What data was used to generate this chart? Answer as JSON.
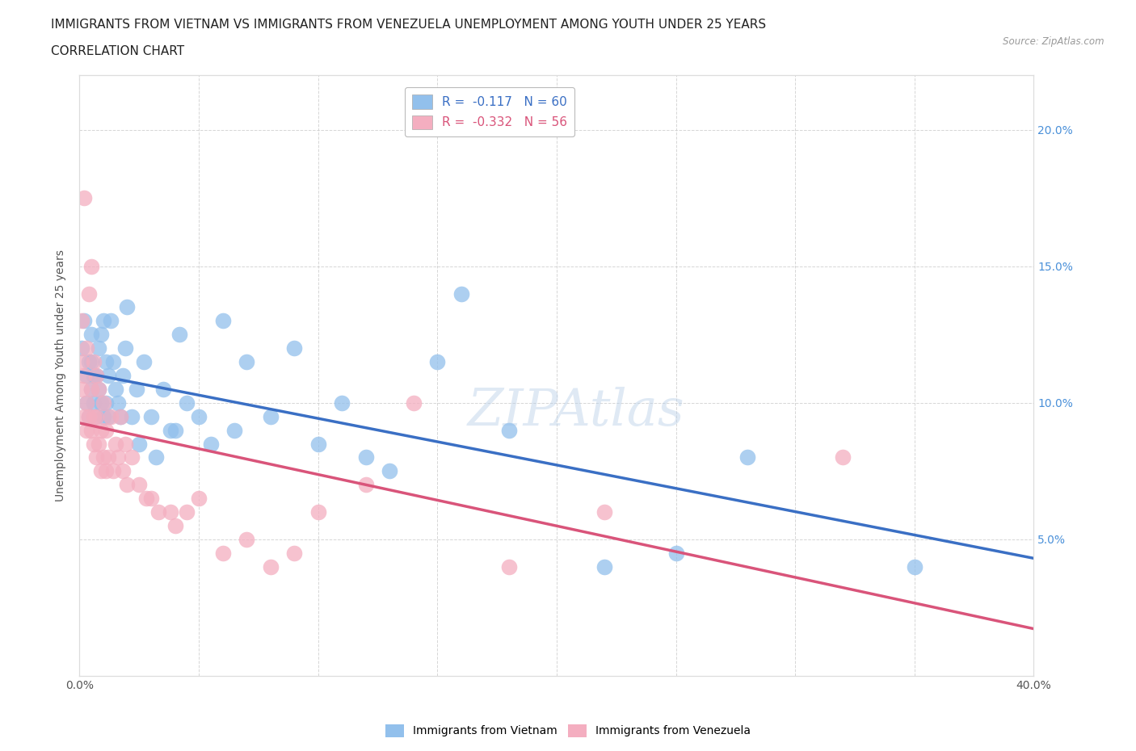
{
  "title_line1": "IMMIGRANTS FROM VIETNAM VS IMMIGRANTS FROM VENEZUELA UNEMPLOYMENT AMONG YOUTH UNDER 25 YEARS",
  "title_line2": "CORRELATION CHART",
  "source_text": "Source: ZipAtlas.com",
  "ylabel": "Unemployment Among Youth under 25 years",
  "xlim": [
    0.0,
    0.4
  ],
  "ylim": [
    0.0,
    0.22
  ],
  "vietnam_color": "#92c0ec",
  "venezuela_color": "#f4aec0",
  "vietnam_line_color": "#3a6fc4",
  "venezuela_line_color": "#d9547a",
  "vietnam_R": -0.117,
  "vietnam_N": 60,
  "venezuela_R": -0.332,
  "venezuela_N": 56,
  "legend_R1": "R =  -0.117   N = 60",
  "legend_R2": "R =  -0.332   N = 56",
  "legend_label1": "Immigrants from Vietnam",
  "legend_label2": "Immigrants from Venezuela",
  "vietnam_scatter_x": [
    0.001,
    0.002,
    0.003,
    0.003,
    0.004,
    0.004,
    0.005,
    0.005,
    0.005,
    0.006,
    0.006,
    0.007,
    0.007,
    0.008,
    0.008,
    0.009,
    0.009,
    0.01,
    0.01,
    0.011,
    0.011,
    0.012,
    0.012,
    0.013,
    0.014,
    0.015,
    0.016,
    0.017,
    0.018,
    0.019,
    0.02,
    0.022,
    0.024,
    0.025,
    0.027,
    0.03,
    0.032,
    0.035,
    0.038,
    0.04,
    0.042,
    0.045,
    0.05,
    0.055,
    0.06,
    0.065,
    0.07,
    0.08,
    0.09,
    0.1,
    0.11,
    0.12,
    0.13,
    0.15,
    0.16,
    0.18,
    0.22,
    0.25,
    0.28,
    0.35
  ],
  "vietnam_scatter_y": [
    0.12,
    0.13,
    0.1,
    0.11,
    0.095,
    0.115,
    0.105,
    0.115,
    0.125,
    0.1,
    0.11,
    0.095,
    0.11,
    0.105,
    0.12,
    0.1,
    0.125,
    0.095,
    0.13,
    0.1,
    0.115,
    0.095,
    0.11,
    0.13,
    0.115,
    0.105,
    0.1,
    0.095,
    0.11,
    0.12,
    0.135,
    0.095,
    0.105,
    0.085,
    0.115,
    0.095,
    0.08,
    0.105,
    0.09,
    0.09,
    0.125,
    0.1,
    0.095,
    0.085,
    0.13,
    0.09,
    0.115,
    0.095,
    0.12,
    0.085,
    0.1,
    0.08,
    0.075,
    0.115,
    0.14,
    0.09,
    0.04,
    0.045,
    0.08,
    0.04
  ],
  "venezuela_scatter_x": [
    0.001,
    0.001,
    0.001,
    0.002,
    0.002,
    0.002,
    0.003,
    0.003,
    0.003,
    0.004,
    0.004,
    0.005,
    0.005,
    0.005,
    0.006,
    0.006,
    0.006,
    0.007,
    0.007,
    0.007,
    0.008,
    0.008,
    0.009,
    0.009,
    0.01,
    0.01,
    0.011,
    0.011,
    0.012,
    0.013,
    0.014,
    0.015,
    0.016,
    0.017,
    0.018,
    0.019,
    0.02,
    0.022,
    0.025,
    0.028,
    0.03,
    0.033,
    0.038,
    0.04,
    0.045,
    0.05,
    0.06,
    0.07,
    0.08,
    0.09,
    0.1,
    0.12,
    0.14,
    0.18,
    0.22,
    0.32
  ],
  "venezuela_scatter_y": [
    0.105,
    0.115,
    0.13,
    0.095,
    0.11,
    0.175,
    0.09,
    0.1,
    0.12,
    0.095,
    0.14,
    0.09,
    0.105,
    0.15,
    0.085,
    0.095,
    0.115,
    0.08,
    0.095,
    0.11,
    0.085,
    0.105,
    0.075,
    0.09,
    0.08,
    0.1,
    0.075,
    0.09,
    0.08,
    0.095,
    0.075,
    0.085,
    0.08,
    0.095,
    0.075,
    0.085,
    0.07,
    0.08,
    0.07,
    0.065,
    0.065,
    0.06,
    0.06,
    0.055,
    0.06,
    0.065,
    0.045,
    0.05,
    0.04,
    0.045,
    0.06,
    0.07,
    0.1,
    0.04,
    0.06,
    0.08
  ],
  "watermark_text": "ZIPAtlas",
  "background_color": "#ffffff",
  "grid_color": "#cccccc",
  "title_fontsize": 11,
  "axis_label_fontsize": 10,
  "tick_fontsize": 10,
  "legend_fontsize": 11
}
